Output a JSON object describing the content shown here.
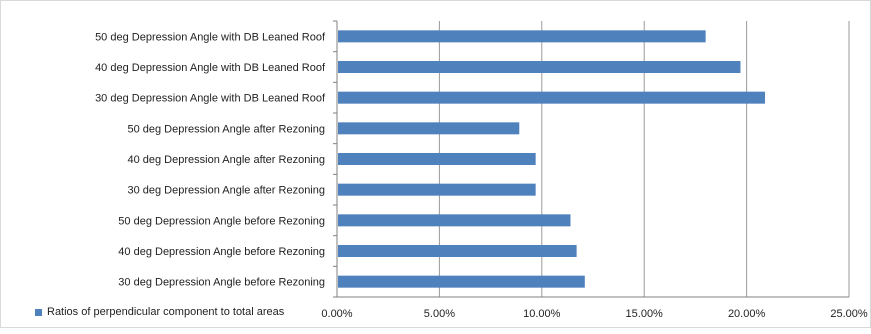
{
  "chart_data": {
    "type": "bar",
    "orientation": "horizontal",
    "categories": [
      "50 deg Depression Angle with DB Leaned Roof",
      "40 deg Depression Angle with DB Leaned Roof",
      "30 deg Depression Angle with DB Leaned Roof",
      "50 deg Depression Angle after Rezoning",
      "40 deg Depression Angle after Rezoning",
      "30 deg Depression Angle after Rezoning",
      "50 deg Depression Angle before Rezoning",
      "40 deg Depression Angle before Rezoning",
      "30 deg Depression Angle before Rezoning"
    ],
    "series": [
      {
        "name": "Ratios of perpendicular component to total areas",
        "color": "#4F81BD",
        "values": [
          18.0,
          19.7,
          20.9,
          8.9,
          9.7,
          9.7,
          11.4,
          11.7,
          12.1
        ]
      }
    ],
    "xticks": [
      "0.00%",
      "5.00%",
      "10.00%",
      "15.00%",
      "20.00%",
      "25.00%"
    ],
    "xlim": [
      0,
      25
    ],
    "grid": true,
    "legend_position": "bottom-left",
    "title": "",
    "xlabel": "",
    "ylabel": ""
  }
}
